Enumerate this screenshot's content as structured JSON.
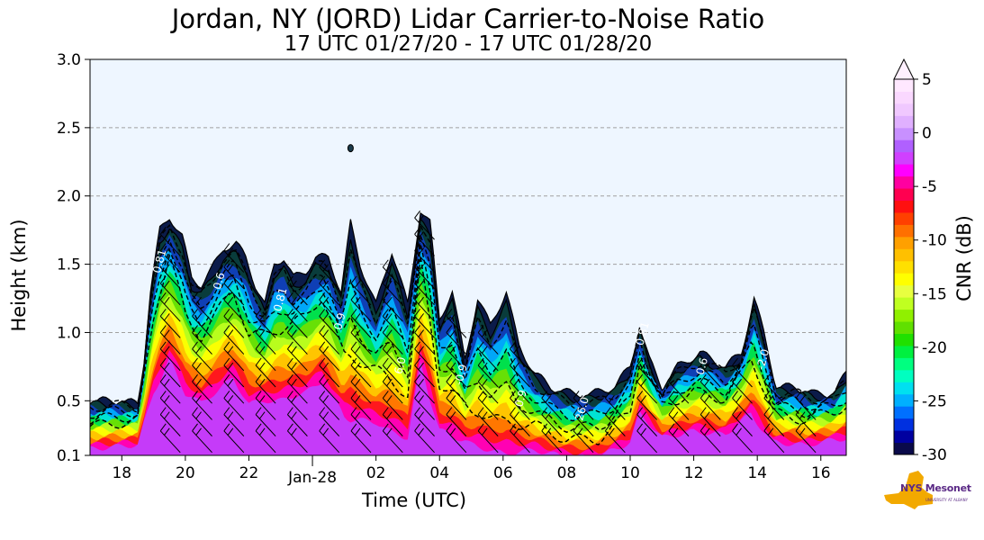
{
  "chart_data": {
    "type": "heatmap",
    "title": "Jordan, NY (JORD) Lidar Carrier-to-Noise Ratio",
    "subtitle": "17 UTC 01/27/20 - 17 UTC 01/28/20",
    "xlabel": "Time (UTC)",
    "ylabel": "Height (km)",
    "colorbar_label": "CNR (dB)",
    "x_ticks": [
      "18",
      "20",
      "22",
      "Jan-28",
      "02",
      "04",
      "06",
      "08",
      "10",
      "12",
      "14",
      "16"
    ],
    "x_tick_hours": [
      18,
      20,
      22,
      24,
      26,
      28,
      30,
      32,
      34,
      36,
      38,
      40
    ],
    "xlim_hours": [
      17,
      40.8
    ],
    "y_ticks": [
      "0.1",
      "0.5",
      "1.0",
      "1.5",
      "2.0",
      "2.5",
      "3.0"
    ],
    "y_tick_values": [
      0.1,
      0.5,
      1.0,
      1.5,
      2.0,
      2.5,
      3.0
    ],
    "ylim": [
      0.1,
      3.0
    ],
    "grid": "horizontal dashed",
    "colorbar_ticks": [
      "5",
      "0",
      "-5",
      "-10",
      "-15",
      "-20",
      "-25",
      "-30"
    ],
    "colorbar_values": [
      5,
      0,
      -5,
      -10,
      -15,
      -20,
      -25,
      -30
    ],
    "clim": [
      -30,
      5
    ],
    "colorbar_colors": [
      "#0a0a4a",
      "#0000a0",
      "#0030e0",
      "#0070ff",
      "#00b0ff",
      "#00e0f0",
      "#00ffc0",
      "#00ff80",
      "#00f040",
      "#20e000",
      "#60e000",
      "#90f000",
      "#c0ff20",
      "#e8ff40",
      "#ffff00",
      "#ffe000",
      "#ffc000",
      "#ffa000",
      "#ff7000",
      "#ff4000",
      "#ff1010",
      "#ff0050",
      "#ff00a0",
      "#ff00ff",
      "#d040ff",
      "#b060ff",
      "#c890ff",
      "#e0b0ff",
      "#f0c8ff",
      "#fad8ff",
      "#ffe8ff"
    ],
    "background_color": "#eef6ff",
    "cloud_profile": [
      [
        17.0,
        0.5
      ],
      [
        17.8,
        0.5
      ],
      [
        18.5,
        0.48
      ],
      [
        18.7,
        0.8
      ],
      [
        18.9,
        1.3
      ],
      [
        19.2,
        1.75
      ],
      [
        19.5,
        1.85
      ],
      [
        19.9,
        1.7
      ],
      [
        20.2,
        1.4
      ],
      [
        20.5,
        1.35
      ],
      [
        20.8,
        1.45
      ],
      [
        21.2,
        1.62
      ],
      [
        21.6,
        1.65
      ],
      [
        21.9,
        1.55
      ],
      [
        22.2,
        1.35
      ],
      [
        22.5,
        1.2
      ],
      [
        22.8,
        1.5
      ],
      [
        23.1,
        1.55
      ],
      [
        23.4,
        1.4
      ],
      [
        23.8,
        1.45
      ],
      [
        24.1,
        1.55
      ],
      [
        24.5,
        1.55
      ],
      [
        24.9,
        1.3
      ],
      [
        25.2,
        1.8
      ],
      [
        25.5,
        1.5
      ],
      [
        26.0,
        1.2
      ],
      [
        26.5,
        1.6
      ],
      [
        27.0,
        1.2
      ],
      [
        27.4,
        1.9
      ],
      [
        27.7,
        1.8
      ],
      [
        28.0,
        1.1
      ],
      [
        28.4,
        1.3
      ],
      [
        28.8,
        0.8
      ],
      [
        29.2,
        1.25
      ],
      [
        29.6,
        1.05
      ],
      [
        30.1,
        1.3
      ],
      [
        30.5,
        0.9
      ],
      [
        31.0,
        0.7
      ],
      [
        31.5,
        0.6
      ],
      [
        32.2,
        0.55
      ],
      [
        32.8,
        0.55
      ],
      [
        33.5,
        0.6
      ],
      [
        34.0,
        0.75
      ],
      [
        34.3,
        1.05
      ],
      [
        34.6,
        0.8
      ],
      [
        35.0,
        0.6
      ],
      [
        35.5,
        0.75
      ],
      [
        36.2,
        0.85
      ],
      [
        37.0,
        0.75
      ],
      [
        37.5,
        0.85
      ],
      [
        37.9,
        1.25
      ],
      [
        38.2,
        1.0
      ],
      [
        38.6,
        0.6
      ],
      [
        39.2,
        0.6
      ],
      [
        39.8,
        0.55
      ],
      [
        40.4,
        0.55
      ],
      [
        40.8,
        0.7
      ]
    ],
    "core_profile": [
      [
        17.0,
        0.3
      ],
      [
        18.5,
        0.35
      ],
      [
        19.0,
        1.1
      ],
      [
        19.5,
        1.55
      ],
      [
        20.0,
        1.1
      ],
      [
        20.5,
        0.95
      ],
      [
        21.5,
        1.3
      ],
      [
        22.0,
        0.95
      ],
      [
        23.0,
        1.0
      ],
      [
        23.8,
        1.1
      ],
      [
        24.3,
        1.25
      ],
      [
        25.0,
        0.8
      ],
      [
        26.0,
        0.7
      ],
      [
        27.0,
        0.5
      ],
      [
        27.4,
        1.5
      ],
      [
        28.0,
        0.6
      ],
      [
        29.0,
        0.4
      ],
      [
        30.0,
        0.3
      ],
      [
        31.0,
        0.3
      ],
      [
        32.0,
        0.2
      ],
      [
        33.0,
        0.2
      ],
      [
        34.0,
        0.4
      ],
      [
        34.3,
        0.8
      ],
      [
        35.0,
        0.45
      ],
      [
        36.0,
        0.55
      ],
      [
        37.0,
        0.5
      ],
      [
        37.8,
        0.8
      ],
      [
        38.5,
        0.4
      ],
      [
        39.5,
        0.35
      ],
      [
        40.8,
        0.45
      ]
    ],
    "isolated_patches": [
      [
        25.2,
        2.35
      ]
    ],
    "wind_barb_columns_hours": [
      19.5,
      20.5,
      21.5,
      22.5,
      23.5,
      24.5,
      25.5,
      26.5,
      27.5,
      28.5,
      29.5,
      30.5,
      31.5,
      32.5,
      33.5,
      34.5,
      35.5,
      36.5,
      37.5,
      38.5,
      39.5
    ],
    "contour_labels": [
      "0.81",
      "0.6",
      "0.81",
      "0.9",
      "6.0",
      "-0.9",
      "0.9",
      "26.0",
      "0.81",
      "0.6",
      "-2.0"
    ]
  },
  "logo": {
    "name": "NYS Mesonet",
    "sub": "UNIVERSITY AT ALBANY",
    "colors": {
      "state": "#f2a900",
      "text": "#5b2a86"
    }
  }
}
